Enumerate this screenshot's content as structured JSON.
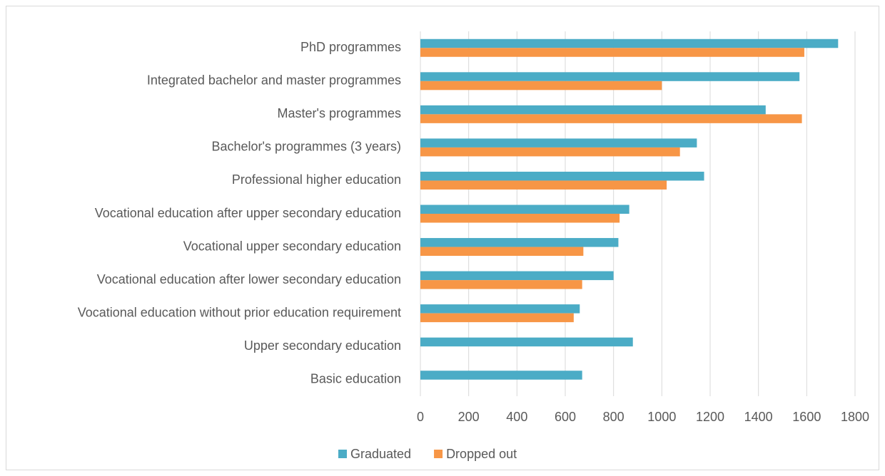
{
  "chart_data": {
    "type": "hbar",
    "categories": [
      "PhD programmes",
      "Integrated bachelor and master programmes",
      "Master's programmes",
      "Bachelor's programmes (3 years)",
      "Professional higher education",
      "Vocational education after upper secondary education",
      "Vocational upper secondary education",
      "Vocational education after lower secondary education",
      "Vocational education without prior education requirement",
      "Upper secondary education",
      "Basic education"
    ],
    "series": [
      {
        "name": "Graduated",
        "color": "#4bacc6",
        "values": [
          1730,
          1570,
          1430,
          1145,
          1175,
          865,
          820,
          800,
          660,
          880,
          670
        ]
      },
      {
        "name": "Dropped out",
        "color": "#f79646",
        "values": [
          1590,
          1000,
          1580,
          1075,
          1020,
          825,
          675,
          670,
          635,
          null,
          null
        ]
      }
    ],
    "xlim": [
      0,
      1800
    ],
    "xticks": [
      0,
      200,
      400,
      600,
      800,
      1000,
      1200,
      1400,
      1600,
      1800
    ],
    "grid": true,
    "legend": "bottom"
  }
}
